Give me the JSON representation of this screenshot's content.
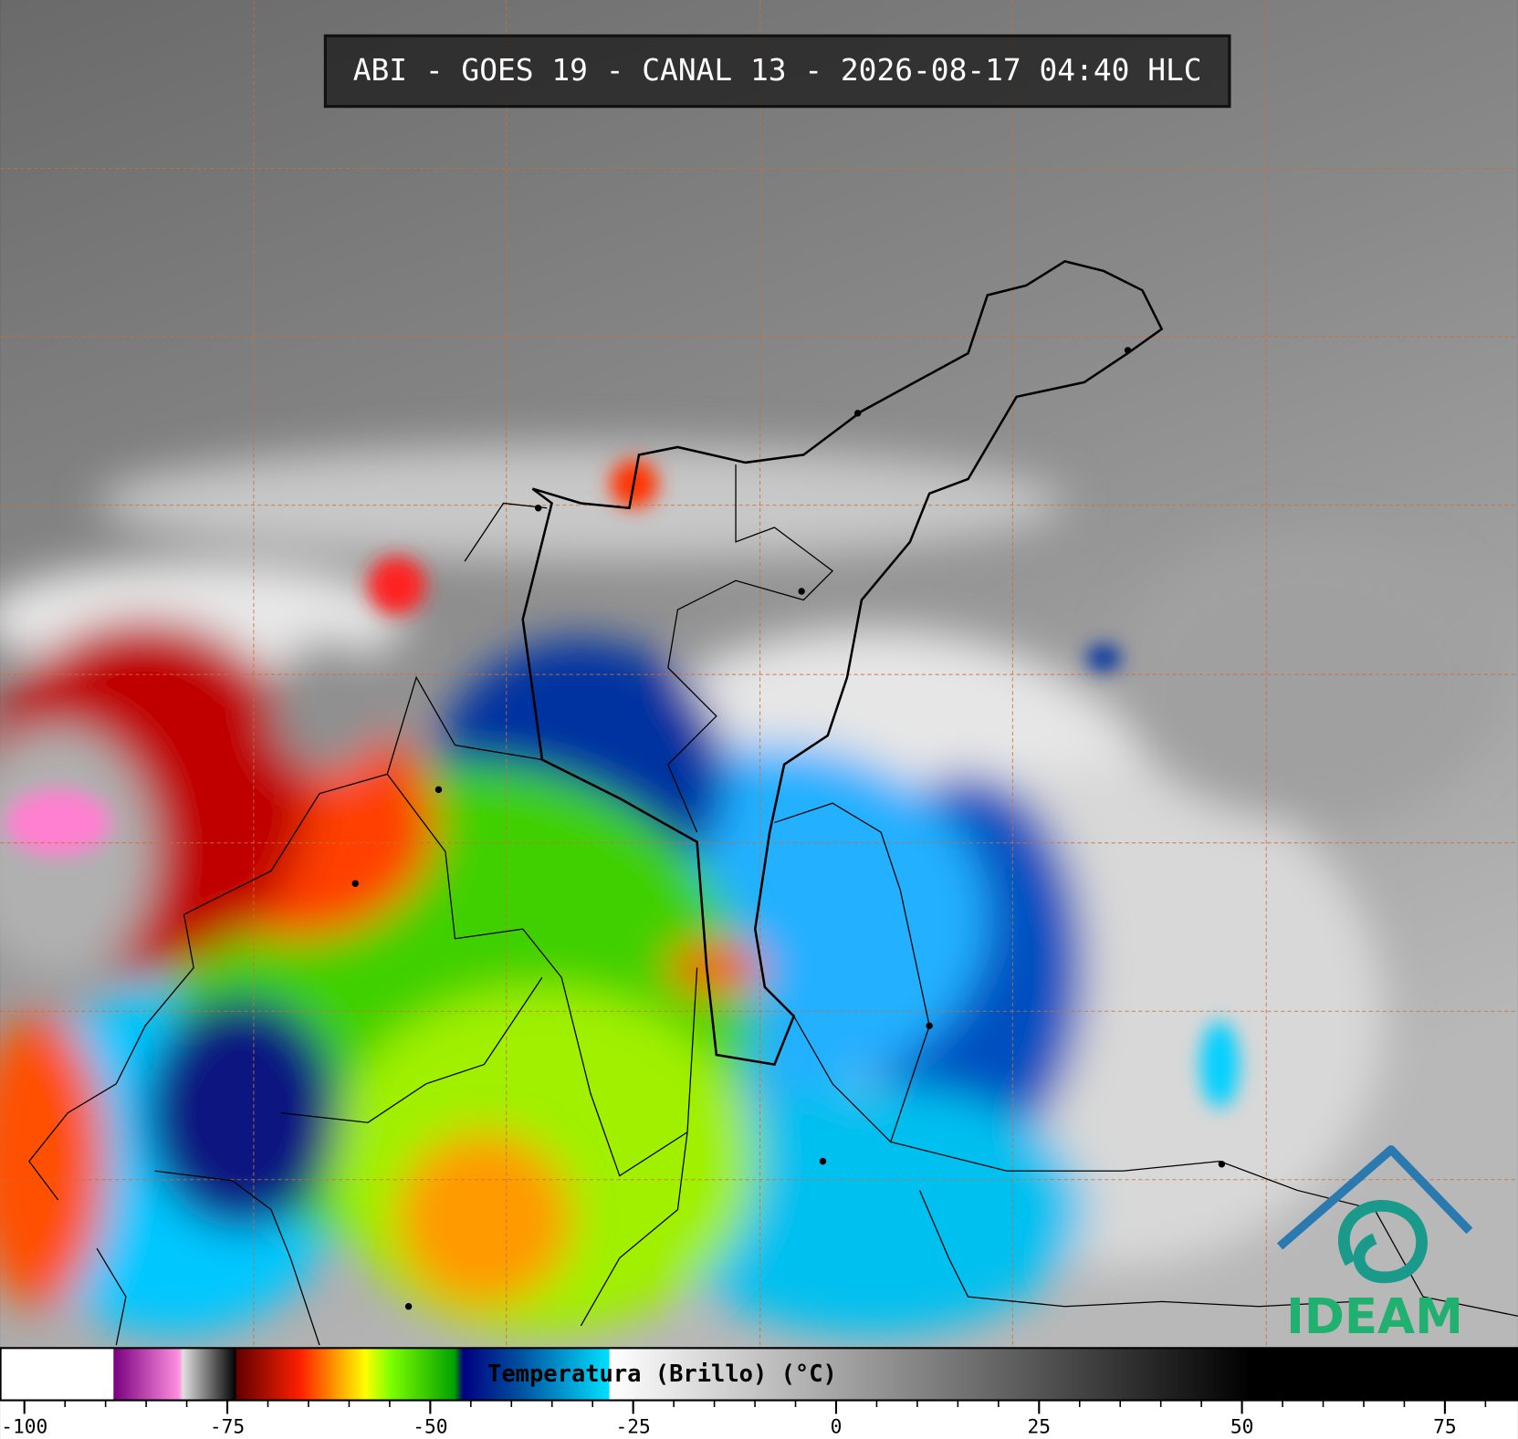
{
  "title": "ABI - GOES 19 - CANAL 13 - 2026-08-17 04:40 HLC",
  "logo": "IDEAM",
  "colorbar": {
    "label": "Temperatura (Brillo) (°C)",
    "lim": [
      -103,
      84
    ],
    "ticks": [
      -100,
      -75,
      -50,
      -25,
      0,
      25,
      50,
      75
    ],
    "minor_step": 5,
    "stops": [
      {
        "value": -103,
        "color": "#ffffff"
      },
      {
        "value": -89.1,
        "color": "#ffffff"
      },
      {
        "value": -89,
        "color": "#7a0080"
      },
      {
        "value": -81,
        "color": "#ff90e0"
      },
      {
        "value": -80.5,
        "color": "#e0e0e0"
      },
      {
        "value": -74,
        "color": "#000000"
      },
      {
        "value": -73.9,
        "color": "#600000"
      },
      {
        "value": -66,
        "color": "#ff2000"
      },
      {
        "value": -62,
        "color": "#ff9000"
      },
      {
        "value": -58,
        "color": "#ffff00"
      },
      {
        "value": -55,
        "color": "#80ff00"
      },
      {
        "value": -47,
        "color": "#00a000"
      },
      {
        "value": -46,
        "color": "#000080"
      },
      {
        "value": -39,
        "color": "#0050a0"
      },
      {
        "value": -28,
        "color": "#00e0ff"
      },
      {
        "value": -27.9,
        "color": "#ffffff"
      },
      {
        "value": 51,
        "color": "#000000"
      },
      {
        "value": 84,
        "color": "#000000"
      }
    ]
  }
}
